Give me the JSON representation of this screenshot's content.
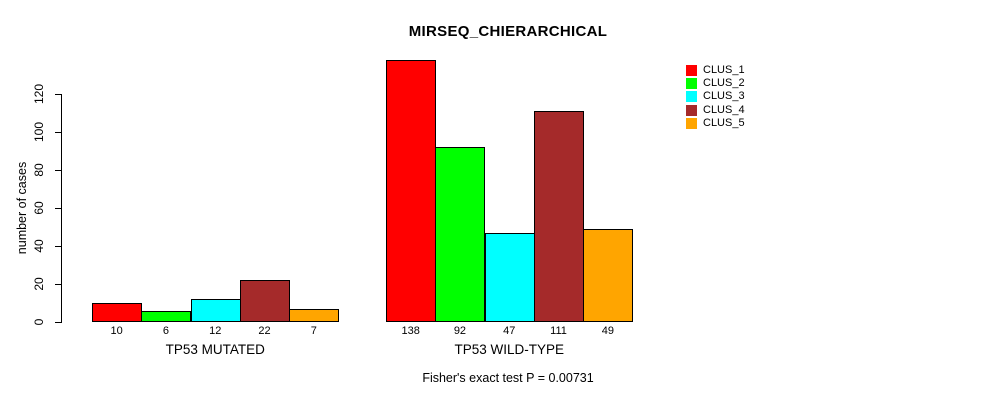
{
  "chart_data": {
    "type": "bar",
    "title": "MIRSEQ_CHIERARCHICAL",
    "ylabel": "number of cases",
    "xlabel": "",
    "annotation": "Fisher's exact test P = 0.00731",
    "yticks": [
      0,
      20,
      40,
      60,
      80,
      100,
      120
    ],
    "ylim": [
      0,
      138
    ],
    "grid": false,
    "legend_position": "top-right",
    "bar_border_color": "#000000",
    "value_labels_under_bars": true,
    "categories": [
      "TP53 MUTATED",
      "TP53 WILD-TYPE"
    ],
    "series": [
      {
        "name": "CLUS_1",
        "color": "#ff0000",
        "values": [
          10,
          138
        ]
      },
      {
        "name": "CLUS_2",
        "color": "#00ff00",
        "values": [
          6,
          92
        ]
      },
      {
        "name": "CLUS_3",
        "color": "#00ffff",
        "values": [
          12,
          47
        ]
      },
      {
        "name": "CLUS_4",
        "color": "#a52a2a",
        "values": [
          22,
          111
        ]
      },
      {
        "name": "CLUS_5",
        "color": "#ffa500",
        "values": [
          7,
          49
        ]
      }
    ]
  }
}
